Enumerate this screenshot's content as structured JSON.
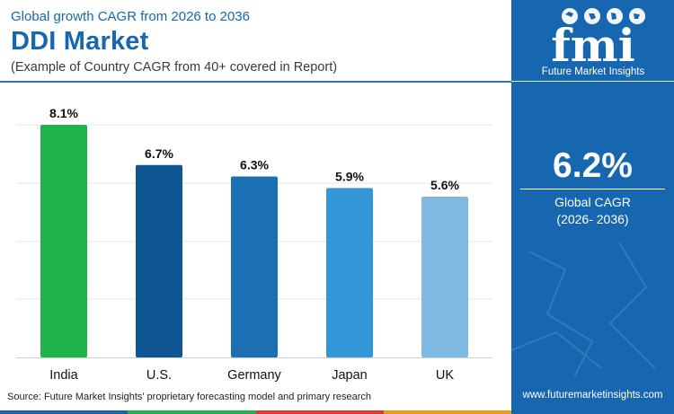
{
  "header": {
    "supertitle": "Global growth CAGR from 2026 to 2036",
    "title": "DDI Market",
    "subtitle": "(Example of Country CAGR from 40+ covered in Report)"
  },
  "chart_data": {
    "type": "bar",
    "categories": [
      "India",
      "U.S.",
      "Germany",
      "Japan",
      "UK"
    ],
    "values": [
      8.1,
      6.7,
      6.3,
      5.9,
      5.6
    ],
    "value_labels": [
      "8.1%",
      "6.7%",
      "6.3%",
      "5.9%",
      "5.6%"
    ],
    "colors": [
      "#1fb44a",
      "#0f5592",
      "#1a70b2",
      "#3296d7",
      "#7db9e2"
    ],
    "ylim": [
      0,
      8.1
    ],
    "grid": true,
    "title": "",
    "xlabel": "",
    "ylabel": ""
  },
  "source": "Source: Future Market Insights' proprietary forecasting model and primary research",
  "sidebar": {
    "logo_text": "fmi",
    "brand_name": "Future Market Insights",
    "cagr_value": "6.2%",
    "cagr_label": "Global CAGR",
    "cagr_period": "(2026- 2036)",
    "website": "www.futuremarketinsights.com"
  },
  "colors": {
    "brand_blue": "#1766b0",
    "strip": [
      "#1766b0",
      "#1fb44a",
      "#e2372b",
      "#f29a1c"
    ]
  }
}
